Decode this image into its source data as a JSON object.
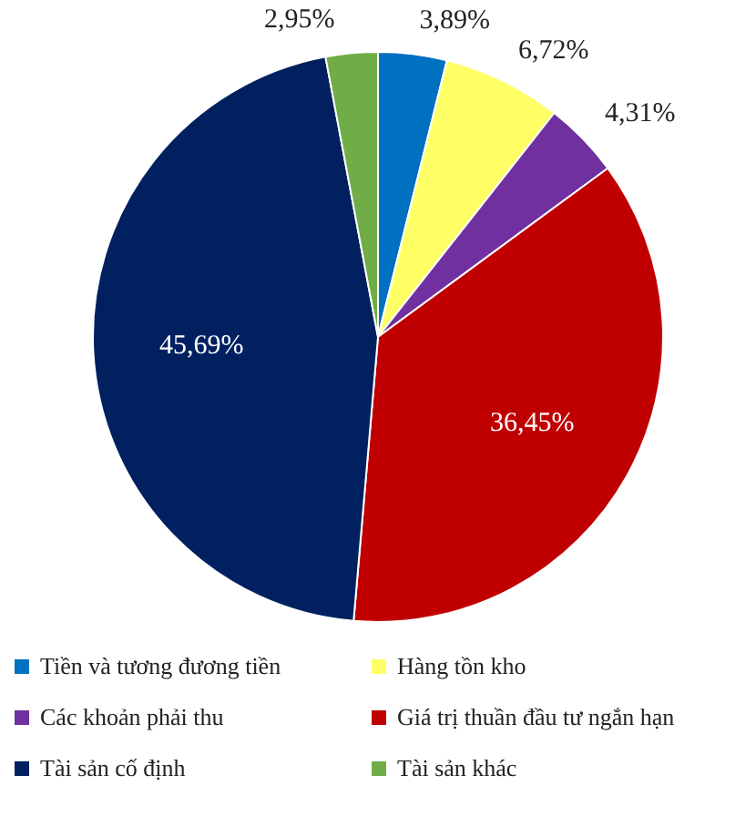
{
  "chart_data": {
    "type": "pie",
    "categories": [
      "Tiền và tương đương tiền",
      "Hàng tồn kho",
      "Các khoản phải thu",
      "Giá trị thuần đầu tư ngắn hạn",
      "Tài sản cố định",
      "Tài sản khác"
    ],
    "values": [
      3.89,
      6.72,
      4.31,
      36.45,
      45.69,
      2.95
    ],
    "colors": [
      "#0070c0",
      "#ffff66",
      "#7030a0",
      "#c00000",
      "#002060",
      "#70ad47"
    ],
    "value_labels": [
      "3,89%",
      "6,72%",
      "4,31%",
      "36,45%",
      "45,69%",
      "2,95%"
    ],
    "legend": "bottom"
  }
}
